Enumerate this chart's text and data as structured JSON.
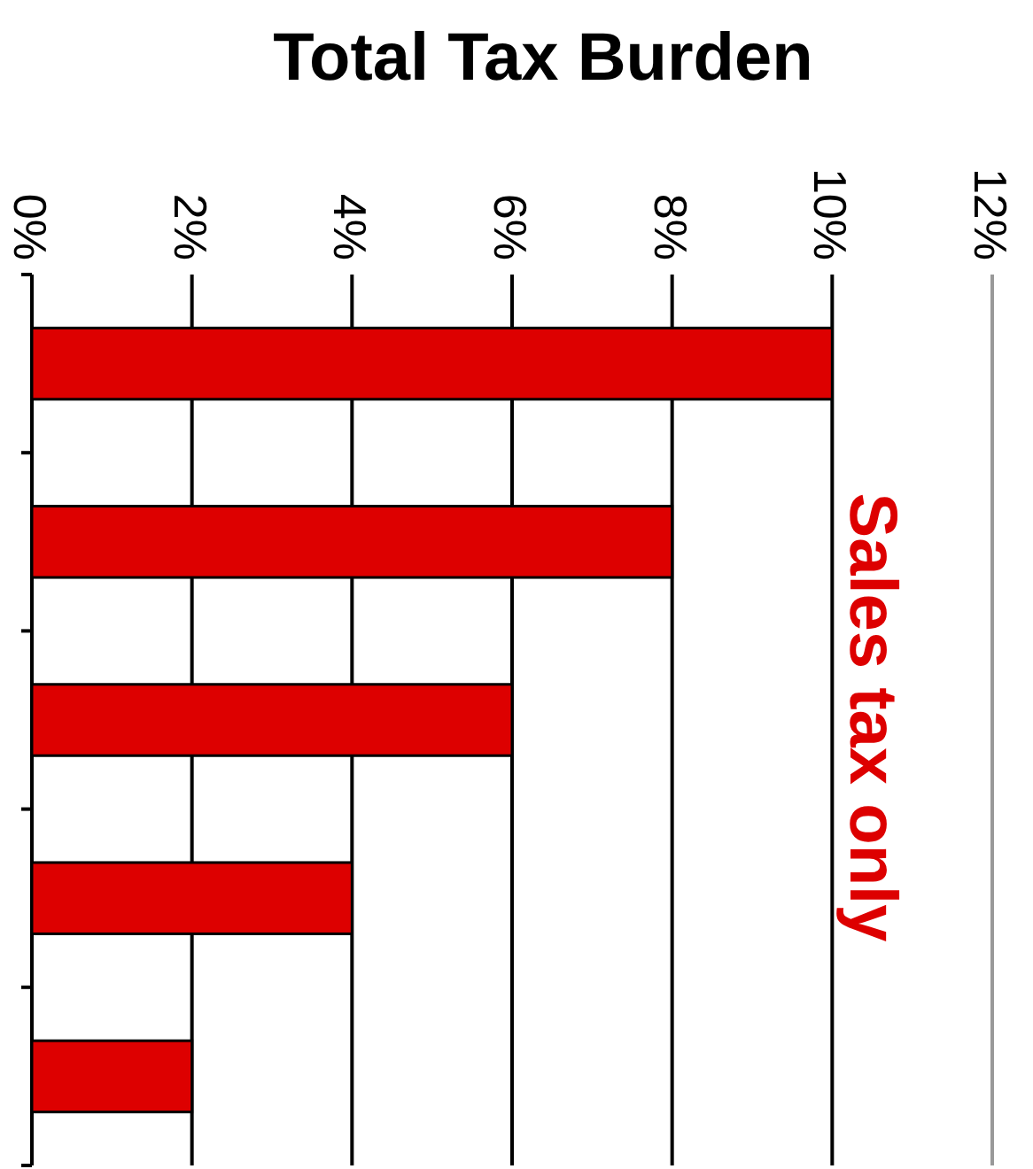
{
  "chart_data": {
    "type": "bar",
    "orientation": "horizontal",
    "title": "Total Tax Burden",
    "categories": [
      null,
      null,
      null,
      null,
      null
    ],
    "values": [
      10,
      8,
      6,
      4,
      2
    ],
    "color": "#dd0000",
    "xlim": [
      0,
      12
    ],
    "xticks": [
      {
        "value": 0,
        "label": "0%"
      },
      {
        "value": 2,
        "label": "2%"
      },
      {
        "value": 4,
        "label": "4%"
      },
      {
        "value": 6,
        "label": "6%"
      },
      {
        "value": 8,
        "label": "8%"
      },
      {
        "value": 10,
        "label": "10%"
      },
      {
        "value": 12,
        "label": "12%"
      }
    ],
    "grid": "x",
    "annotations": [
      "Sales tax only"
    ]
  }
}
